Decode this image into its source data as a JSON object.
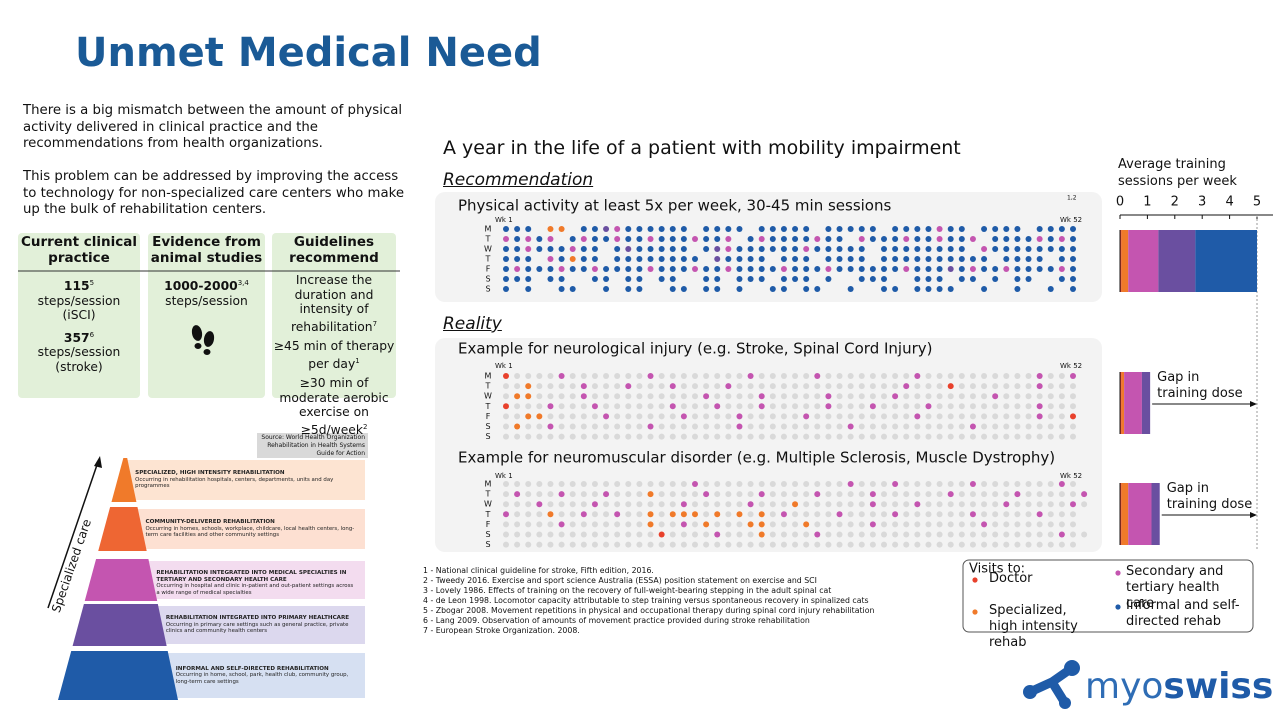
{
  "header": {
    "title": "Unmet Medical Need"
  },
  "intro": [
    "There is a big mismatch between the amount of physical activity delivered in clinical practice and the recommendations from health organizations.",
    "This problem can be addressed by improving the access to technology for non-specialized care centers who make up the bulk of rehabilitation centers."
  ],
  "table": {
    "columns": [
      {
        "header": "Current clinical practice",
        "items": [
          {
            "value": "115",
            "sup": "5",
            "text": "steps/session (iSCI)"
          },
          {
            "value": "357",
            "sup": "6",
            "text": "steps/session (stroke)"
          }
        ]
      },
      {
        "header": "Evidence from animal studies",
        "items": [
          {
            "value": "1000-2000",
            "sup": "3,4",
            "text": "steps/session"
          }
        ]
      },
      {
        "header": "Guidelines recommend",
        "items": [
          {
            "text": "Increase the duration and intensity of rehabilitation",
            "sup": "7"
          },
          {
            "text": "≥45 min of therapy per day",
            "sup": "1"
          },
          {
            "text": "≥30 min of moderate aerobic exercise on ≥5d/week",
            "sup": "2"
          }
        ]
      }
    ]
  },
  "pyramid": {
    "source": "Source: World Health Organization Rehabilitation in Health Systems Guide for Action",
    "axis_label": "Specialized care",
    "levels": [
      {
        "title": "SPECIALIZED, HIGH INTENSITY REHABILITATION",
        "description": "Occurring in rehabilitation hospitals, centers, departments, units and day programmes",
        "color": "#f07a2a",
        "light": "#fde4d2"
      },
      {
        "title": "COMMUNITY-DELIVERED REHABILITATION",
        "description": "Occurring in homes, schools, workplace, childcare, local health centers, long-term care facilities and other community settings",
        "color": "#ee6633",
        "light": "#fde0d2"
      },
      {
        "title": "REHABILITATION INTEGRATED INTO MEDICAL SPECIALTIES IN TERTIARY AND SECONDARY HEALTH CARE",
        "description": "Occurring in hospital and clinic in-patient and out-patient settings across a wide range of medical specialties",
        "color": "#c455b0",
        "light": "#f3dcef"
      },
      {
        "title": "REHABILITATION INTEGRATED INTO PRIMARY HEALTHCARE",
        "description": "Occurring in primary care settings such as general practice, private clinics and community health centers",
        "color": "#6a4fa0",
        "light": "#dcd8ee"
      },
      {
        "title": "INFORMAL AND SELF-DIRECTED REHABILITATION",
        "description": "Occurring in home, school, park, health club, community group, long-term care settings",
        "color": "#1f5ba8",
        "light": "#d6e0f2"
      }
    ]
  },
  "timeline": {
    "title": "A year in the life of a patient with mobility impairment",
    "days": [
      "M",
      "T",
      "W",
      "T",
      "F",
      "S",
      "S"
    ],
    "week_first": "Wk 1",
    "week_last": "Wk 52",
    "dot_colors": {
      "r": "#e8412c",
      "o": "#f07a2a",
      "p": "#c455b0",
      "u": "#6a4fa0",
      "b": "#1f5ba8",
      ".": "#d9d9d9"
    },
    "recommendation": {
      "heading": "Recommendation",
      "title": "Physical activity at least 5x per week, 30-45 min sessions",
      "sup": "1,2",
      "rows": [
        "bbb oo bbupbbbbbb bbbb bbbbb bbbbb bbbbpbb bbbb bbbb",
        "pbpbp bpbbpbbpbbbpbbp bpbbbbpbb pbbbpbbpbbp bbbbpbpb",
        "bbpbbbpbb bubbbbb bupbbbbbbpbbbbb bbbbbbbb pbbbbbbbb",
        "bbb pbobb bbbbbbbb ubbbb bbb bbbb bbbbbbbbbb bbbb bb",
        "bpbbbpbbpbbbbpbbbpbbpbbbbpbbbpbbbbbbpbbbubpbbpbbbbpb",
        "bbb bb  bb bb bb  bb bbb bbb b  bbb  bbb bb b bb  bb",
        "b b  bb  b bb  bb bb b  bb bb  b  bb bbbb  b  b  b b"
      ]
    },
    "reality": {
      "heading": "Reality",
      "panels": [
        {
          "title": "Example for neurological injury (e.g. Stroke, Spinal Cord Injury)",
          "rows": [
            "r....p.......p........p.....p........p..........p..p",
            "..o....p...p...p....p...............p...r.......p...",
            ".oo....p..........p....p.....p.....p........p.......",
            "r...p...p......p...p...p.....p...p....p.........p...",
            "..oo.....p......p....p.....p.........p..........p..r",
            ".o..p........p.......p.........p..........p.........",
            "...................................................."
          ]
        },
        {
          "title": "Example for neuromuscular disorder (e.g. Multiple Sclerosis, Muscle Dystrophy)",
          "rows": [
            ".................p.............p...p......p.......p.",
            ".p...p...p...o....p....p....p....p......p.....p.....p",
            "...p....p.......p.....p...o......p...p.......p.....p.",
            "p...o..p..p..o.ooo.o.o.o.p....p....p......p.....p...",
            ".....p.......o..p.o...oo...o.....p.........p........",
            "..............r....p...o....p.....................p..",
            "...................................................."
          ]
        }
      ]
    }
  },
  "footnotes": [
    "1 - National clinical guideline for stroke, Fifth edition, 2016.",
    "2 - Tweedy 2016. Exercise and sport science Australia (ESSA) position statement on exercise and SCI",
    "3 - Lovely 1986. Effects of training on the recovery of full-weight-bearing stepping in the adult spinal cat",
    "4 - de Leon 1998. Locomotor capacity attributable to step training versus spontaneous recovery in spinalized cats",
    "5 - Zbogar 2008. Movement repetitions in physical and occupational therapy during spinal cord injury rehabilitation",
    "6 - Lang 2009. Observation of amounts of movement practice provided during stroke rehabilitation",
    "7 - European Stroke Organization. 2008."
  ],
  "chart_data": {
    "type": "bar",
    "orientation": "horizontal",
    "stacked": true,
    "title": "Average training sessions per week",
    "xlim": [
      0,
      5
    ],
    "xticks": [
      0,
      1,
      2,
      3,
      4,
      5
    ],
    "series": [
      {
        "name": "Doctor",
        "color": "#e8412c",
        "values": [
          0.05,
          0.05,
          0.05
        ]
      },
      {
        "name": "Specialized, high intensity rehab",
        "color": "#f07a2a",
        "values": [
          0.25,
          0.1,
          0.25
        ]
      },
      {
        "name": "Secondary and tertiary health care",
        "color": "#c455b0",
        "values": [
          1.1,
          0.65,
          0.85
        ]
      },
      {
        "name": null,
        "color": "#6a4fa0",
        "values": [
          1.35,
          0.3,
          0.3
        ]
      },
      {
        "name": "Informal and self-directed rehab",
        "color": "#1f5ba8",
        "values": [
          2.25,
          0,
          0
        ]
      }
    ],
    "annotations": [
      null,
      "Gap in training dose",
      "Gap in training dose"
    ],
    "legend_title": "Visits to:"
  },
  "logo": {
    "part1": "myo",
    "part2": "swiss"
  }
}
